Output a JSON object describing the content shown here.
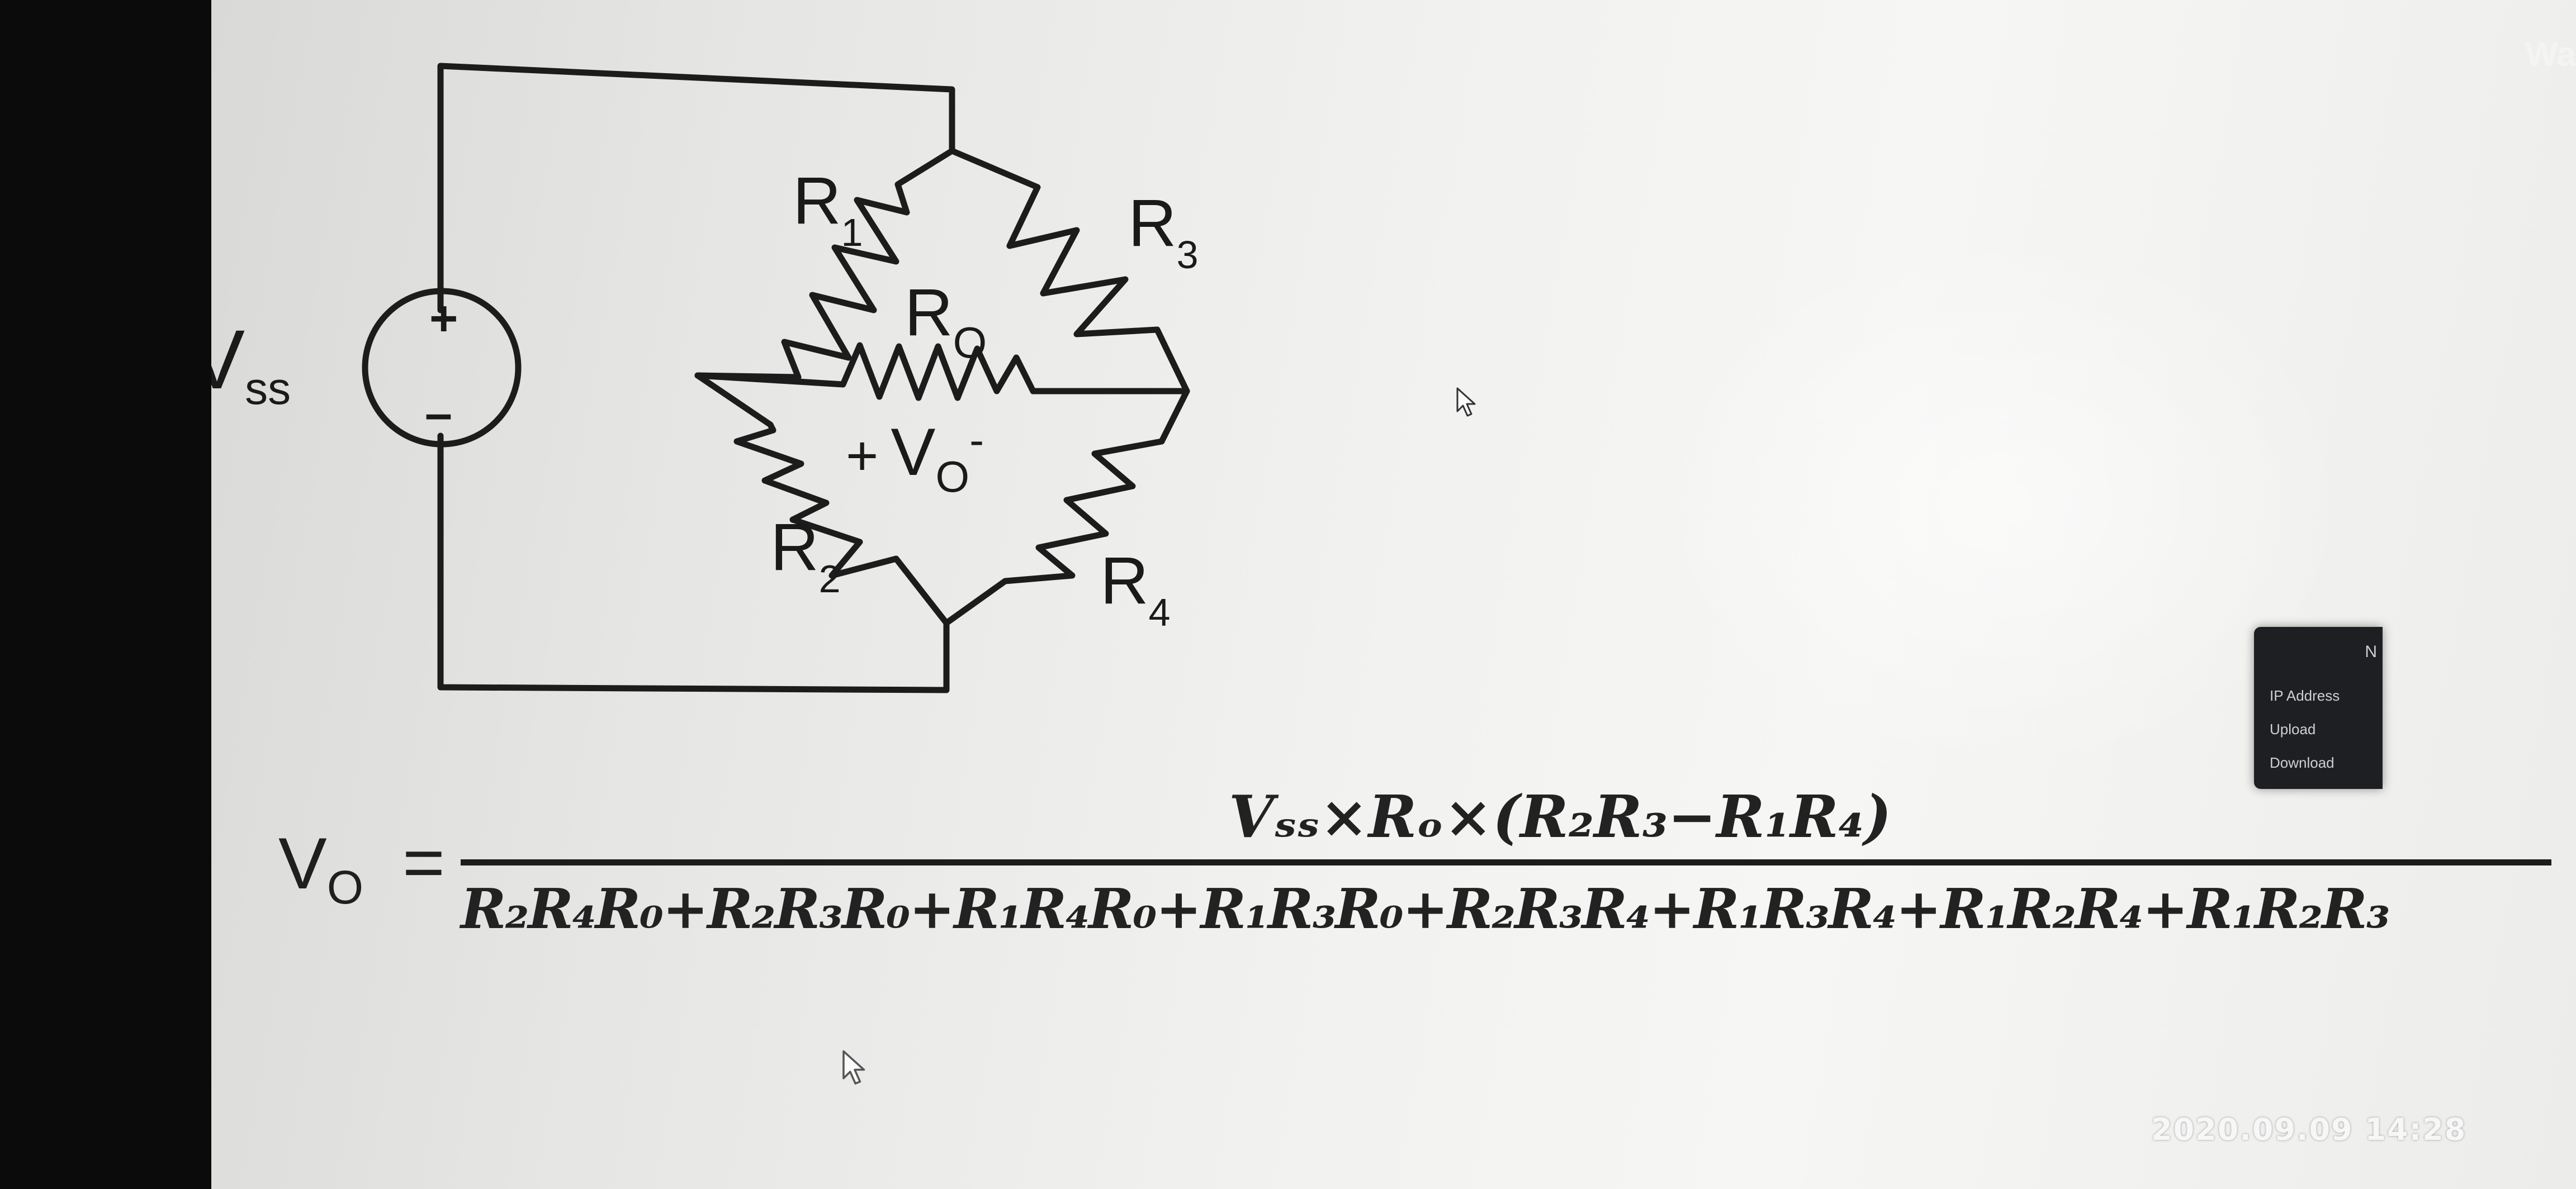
{
  "circuit": {
    "source_label": "V",
    "source_sub": "ss",
    "plus": "+",
    "minus": "–",
    "r1": "R",
    "r1_sub": "1",
    "r2": "R",
    "r2_sub": "2",
    "r3": "R",
    "r3_sub": "3",
    "r4": "R",
    "r4_sub": "4",
    "r0": "R",
    "r0_sub": "O",
    "vo_plus": "+",
    "vo": "V",
    "vo_sub": "O",
    "vo_minus": "-"
  },
  "equation": {
    "lhs": "V",
    "lhs_sub": "O",
    "equals": "=",
    "numerator": "Vₛₛ×Rₒ×(R₂R₃−R₁R₄)",
    "denominator": "R₂R₄R₀+R₂R₃R₀+R₁R₄R₀+R₁R₃R₀+R₂R₃R₄+R₁R₃R₄+R₁R₂R₄+R₁R₂R₃"
  },
  "overlay": {
    "top_right_text": "Wa",
    "popup_header": "N",
    "popup_items": [
      "IP Address",
      "Upload",
      "Download"
    ]
  },
  "timestamp": "2020.09.09 14:28",
  "colors": {
    "ink": "#1c1c1c",
    "screen": "#eeeeec",
    "bezel": "#0b0b0c",
    "popup": "#1e1f22"
  }
}
